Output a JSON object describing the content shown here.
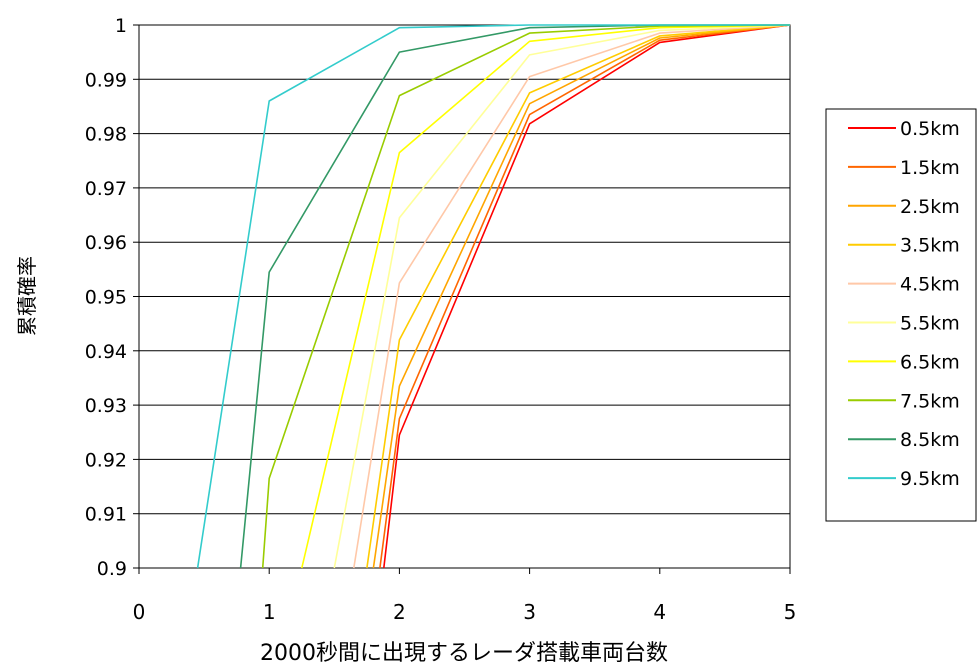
{
  "chart_data": {
    "type": "line",
    "title": "",
    "xlabel": "2000秒間に出現するレーダ搭載車両台数",
    "ylabel": "累積確率",
    "xlim": [
      0,
      5
    ],
    "ylim": [
      0.9,
      1
    ],
    "x_ticks": [
      "0",
      "1",
      "2",
      "3",
      "4",
      "5"
    ],
    "y_ticks": [
      "0.9",
      "0.91",
      "0.92",
      "0.93",
      "0.94",
      "0.95",
      "0.96",
      "0.97",
      "0.98",
      "0.99",
      "1"
    ],
    "grid": "horizontal",
    "legend": "right",
    "series": [
      {
        "name": "0.5km",
        "color": "#ff0000",
        "points": [
          [
            1.88,
            0.9
          ],
          [
            2,
            0.9245
          ],
          [
            3,
            0.9818
          ],
          [
            4,
            0.9968
          ],
          [
            5,
            1.0
          ]
        ]
      },
      {
        "name": "1.5km",
        "color": "#ff6600",
        "points": [
          [
            1.85,
            0.9
          ],
          [
            2,
            0.9275
          ],
          [
            3,
            0.9835
          ],
          [
            4,
            0.9972
          ],
          [
            5,
            1.0
          ]
        ]
      },
      {
        "name": "2.5km",
        "color": "#ffa500",
        "points": [
          [
            1.8,
            0.9
          ],
          [
            2,
            0.9335
          ],
          [
            3,
            0.9855
          ],
          [
            4,
            0.9976
          ],
          [
            5,
            1.0
          ]
        ]
      },
      {
        "name": "3.5km",
        "color": "#ffcc00",
        "points": [
          [
            1.75,
            0.9
          ],
          [
            2,
            0.942
          ],
          [
            3,
            0.9875
          ],
          [
            4,
            0.998
          ],
          [
            5,
            1.0
          ]
        ]
      },
      {
        "name": "4.5km",
        "color": "#ffc8a8",
        "points": [
          [
            1.65,
            0.9
          ],
          [
            2,
            0.9525
          ],
          [
            3,
            0.9905
          ],
          [
            4,
            0.9985
          ],
          [
            5,
            1.0
          ]
        ]
      },
      {
        "name": "5.5km",
        "color": "#ffff99",
        "points": [
          [
            1.5,
            0.9
          ],
          [
            2,
            0.9645
          ],
          [
            3,
            0.9945
          ],
          [
            4,
            0.999
          ],
          [
            5,
            1.0
          ]
        ]
      },
      {
        "name": "6.5km",
        "color": "#ffff00",
        "points": [
          [
            1.25,
            0.9
          ],
          [
            2,
            0.9765
          ],
          [
            3,
            0.997
          ],
          [
            4,
            0.9995
          ],
          [
            5,
            1.0
          ]
        ]
      },
      {
        "name": "7.5km",
        "color": "#99cc00",
        "points": [
          [
            0.95,
            0.9
          ],
          [
            1,
            0.9165
          ],
          [
            2,
            0.987
          ],
          [
            3,
            0.9985
          ],
          [
            4,
            0.9998
          ],
          [
            5,
            1.0
          ]
        ]
      },
      {
        "name": "8.5km",
        "color": "#339966",
        "points": [
          [
            0.78,
            0.9
          ],
          [
            1,
            0.9545
          ],
          [
            2,
            0.995
          ],
          [
            3,
            0.9995
          ],
          [
            4,
            1.0
          ],
          [
            5,
            1.0
          ]
        ]
      },
      {
        "name": "9.5km",
        "color": "#33cccc",
        "points": [
          [
            0.45,
            0.9
          ],
          [
            1,
            0.986
          ],
          [
            2,
            0.9995
          ],
          [
            3,
            1.0
          ],
          [
            4,
            1.0
          ],
          [
            5,
            1.0
          ]
        ]
      }
    ]
  }
}
